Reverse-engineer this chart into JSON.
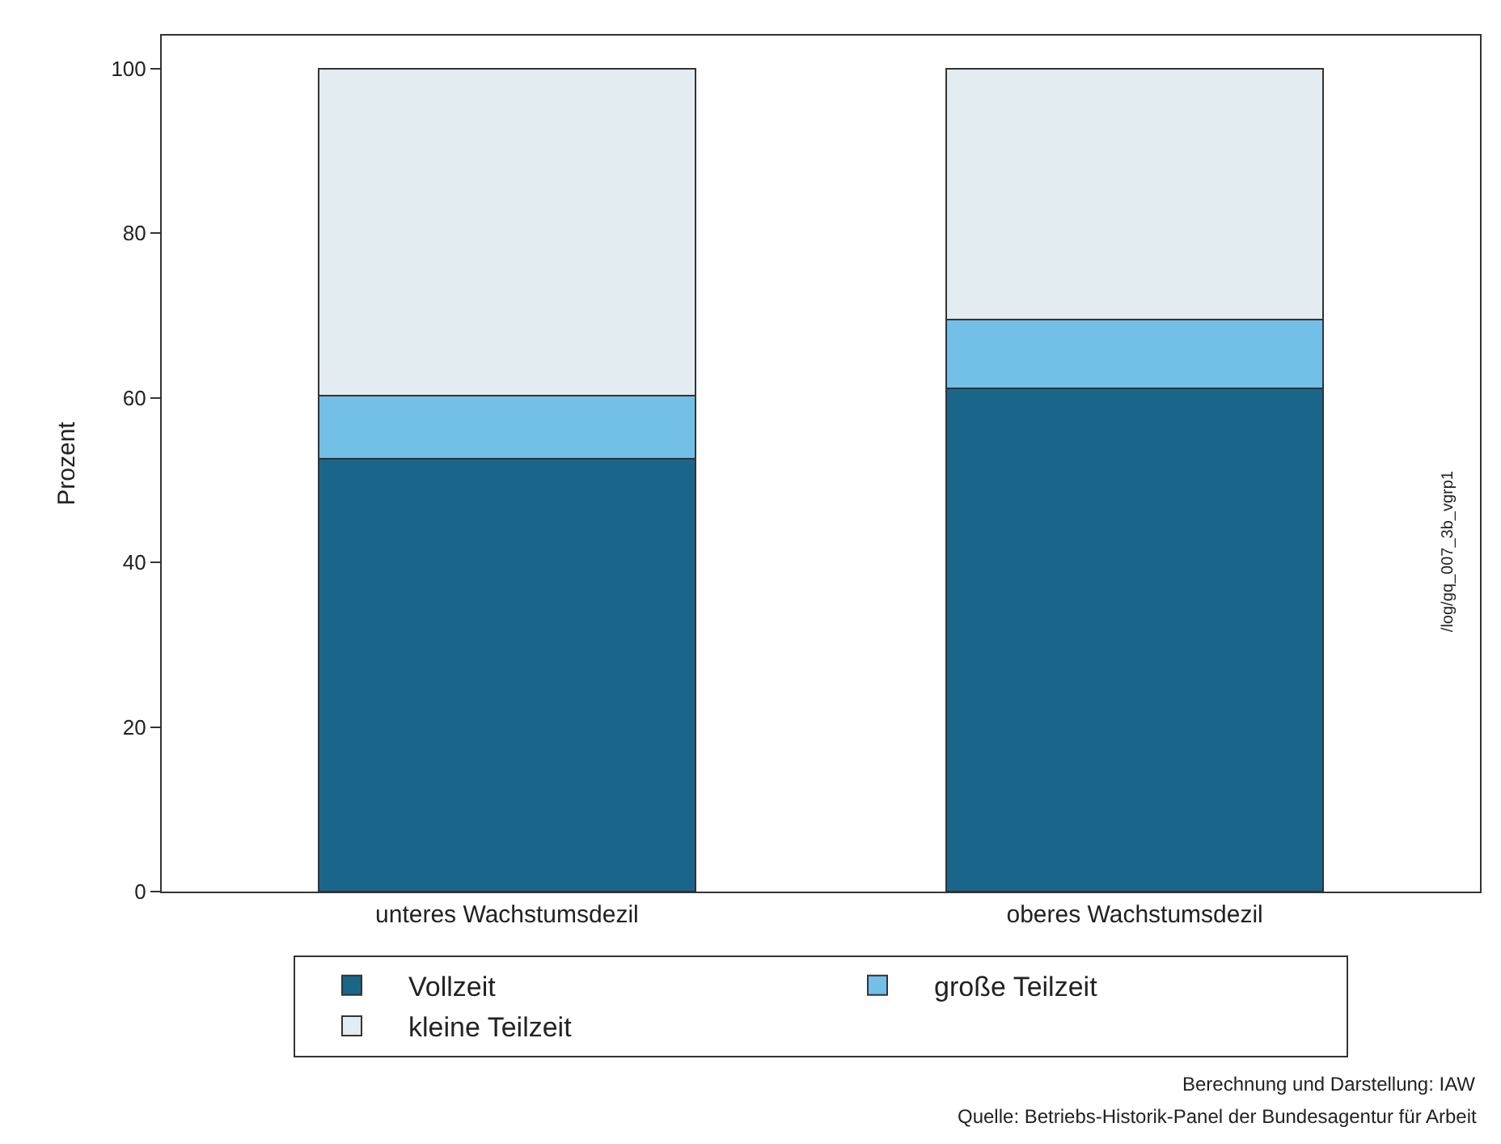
{
  "chart_data": {
    "type": "bar",
    "stacked": true,
    "ylabel": "Prozent",
    "categories": [
      "unteres Wachstumsdezil",
      "oberes Wachstumsdezil"
    ],
    "series": [
      {
        "name": "Vollzeit",
        "color": "#1a668a",
        "values": [
          52.6,
          61.1
        ]
      },
      {
        "name": "große Teilzeit",
        "color": "#72bfe8",
        "values": [
          7.7,
          8.4
        ]
      },
      {
        "name": "kleine Teilzeit",
        "color": "#e3ecf0",
        "values": [
          39.7,
          30.5
        ]
      }
    ],
    "ylim": [
      0,
      104
    ],
    "yticks": [
      0,
      20,
      40,
      60,
      80,
      100
    ],
    "grid": false,
    "legend": "bottom",
    "annotations": [
      "/log/gq_007_3b_vgrp1",
      "Berechnung und Darstellung: IAW",
      "Quelle: Betriebs-Historik-Panel der Bundesagentur für Arbeit"
    ]
  }
}
